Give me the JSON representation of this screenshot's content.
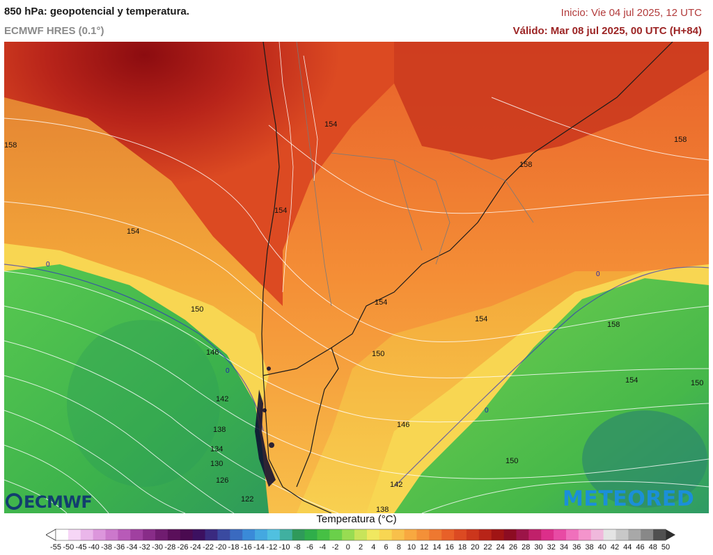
{
  "header": {
    "title": "850 hPa: geopotencial y temperatura.",
    "model": "ECMWF HRES (0.1°)",
    "init": "Inicio: Vie 04 jul 2025, 12 UTC",
    "valid": "Válido: Mar 08 jul 2025, 00 UTC (H+84)"
  },
  "map": {
    "isohypse_labels": [
      "154",
      "158",
      "158",
      "158",
      "154",
      "154",
      "150",
      "154",
      "154",
      "146",
      "150",
      "158",
      "142",
      "154",
      "150",
      "138",
      "146",
      "134",
      "150",
      "130",
      "142",
      "126",
      "122",
      "138"
    ],
    "freezing_labels": [
      "0",
      "0",
      "0",
      "0"
    ]
  },
  "legend": {
    "title": "Temperatura (°C)",
    "ticks": [
      "-55",
      "-50",
      "-45",
      "-40",
      "-38",
      "-36",
      "-34",
      "-32",
      "-30",
      "-28",
      "-26",
      "-24",
      "-22",
      "-20",
      "-18",
      "-16",
      "-14",
      "-12",
      "-10",
      "-8",
      "-6",
      "-4",
      "-2",
      "0",
      "2",
      "4",
      "6",
      "8",
      "10",
      "12",
      "14",
      "16",
      "18",
      "20",
      "22",
      "24",
      "26",
      "28",
      "30",
      "32",
      "34",
      "36",
      "38",
      "40",
      "42",
      "44",
      "46",
      "48",
      "50"
    ],
    "colors": [
      "#ffffff",
      "#f6d6f6",
      "#eab6ea",
      "#dc96dc",
      "#cc78cc",
      "#b85ab8",
      "#a040a0",
      "#882c88",
      "#701c70",
      "#5a0f5a",
      "#4a0a50",
      "#3c1060",
      "#3a2a80",
      "#3a4aa0",
      "#3a6ac0",
      "#3a8ad8",
      "#44a8e0",
      "#50c0e0",
      "#40b0a0",
      "#2f9a5a",
      "#2fae4a",
      "#46c044",
      "#6ad04a",
      "#98dc52",
      "#c8e45a",
      "#f0e860",
      "#f8d652",
      "#f8c04a",
      "#f8a840",
      "#f49038",
      "#ee7830",
      "#e86028",
      "#dc4a22",
      "#cc361c",
      "#b82418",
      "#a01414",
      "#8c0c22",
      "#9c1448",
      "#c0206a",
      "#dc2e8a",
      "#e84aa4",
      "#f070bc",
      "#f494cc",
      "#f0b8dc",
      "#e4e4e4",
      "#c8c8c8",
      "#a8a8a8",
      "#888888",
      "#505050"
    ]
  },
  "logos": {
    "left": "ECMWF",
    "right": "METEORED"
  }
}
